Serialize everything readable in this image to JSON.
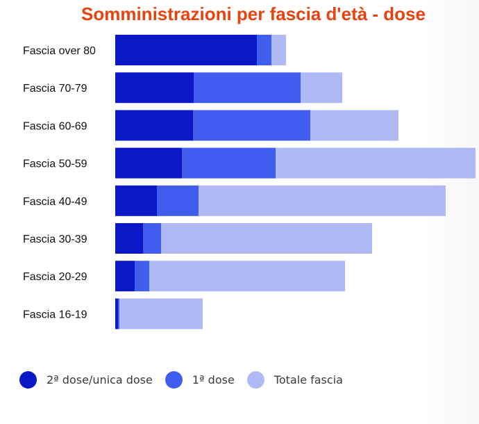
{
  "chart_data": {
    "type": "bar",
    "orientation": "horizontal",
    "stacked": true,
    "title": "Somministrazioni per fascia d'età - dose",
    "categories": [
      "Fascia over 80",
      "Fascia 70-79",
      "Fascia 60-69",
      "Fascia 50-59",
      "Fascia 40-49",
      "Fascia 30-39",
      "Fascia 20-29",
      "Fascia 16-19"
    ],
    "series": [
      {
        "name": "2ª dose/unica dose",
        "color": "#0a18c8",
        "values": [
          204,
          113,
          112,
          96,
          60,
          40,
          28,
          4
        ]
      },
      {
        "name": "1ª dose",
        "color": "#3f5ef0",
        "values": [
          21,
          154,
          169,
          135,
          60,
          26,
          21,
          2
        ]
      },
      {
        "name": "Totale fascia",
        "color": "#afbaf5",
        "values": [
          21,
          60,
          127,
          288,
          356,
          304,
          282,
          120
        ]
      }
    ],
    "totals": [
      246,
      327,
      408,
      519,
      476,
      370,
      331,
      126
    ],
    "x_axis_shown": false,
    "grid": false,
    "legend_position": "bottom-left"
  },
  "legend": {
    "items": [
      {
        "label": "2ª dose/unica dose",
        "color": "#0a18c8"
      },
      {
        "label": "1ª dose",
        "color": "#3f5ef0"
      },
      {
        "label": "Totale fascia",
        "color": "#afbaf5"
      }
    ]
  }
}
